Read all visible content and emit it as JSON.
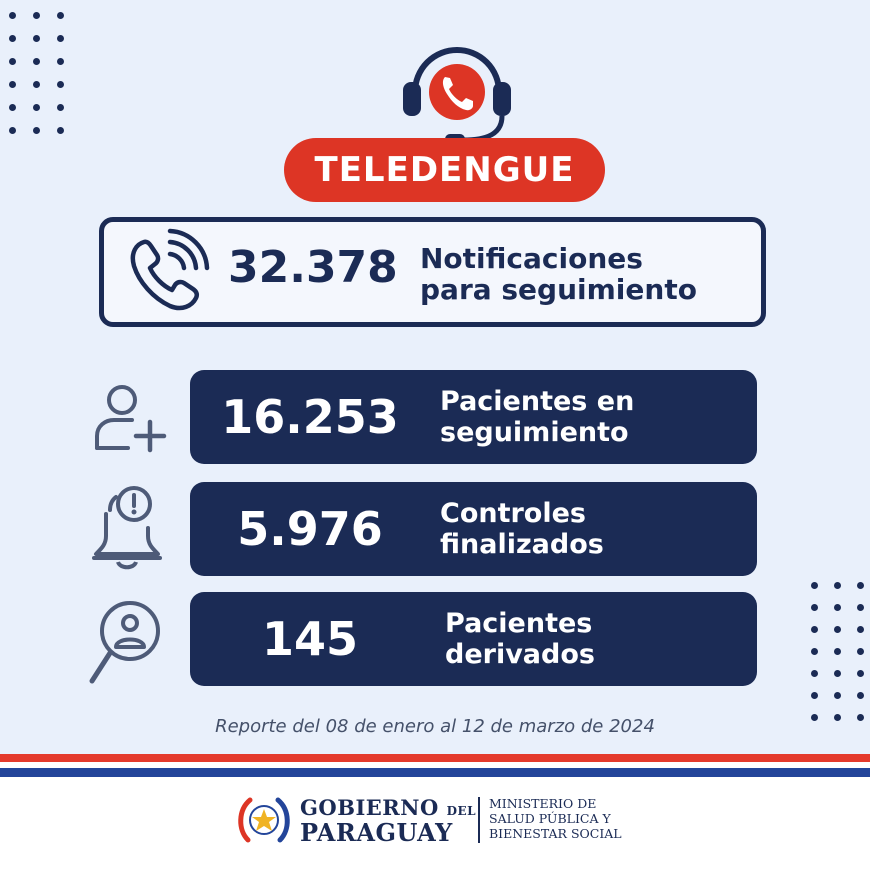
{
  "header": {
    "title": "TELEDENGUE"
  },
  "notifications": {
    "value": "32.378",
    "label_line1": "Notificaciones",
    "label_line2": "para seguimiento",
    "icon": "phone-ringing-icon"
  },
  "stats": [
    {
      "value": "16.253",
      "label_line1": "Pacientes en",
      "label_line2": "seguimiento",
      "icon": "add-user-icon"
    },
    {
      "value": "5.976",
      "label_line1": "Controles",
      "label_line2": "finalizados",
      "icon": "bell-alert-icon"
    },
    {
      "value": "145",
      "label_line1": "Pacientes",
      "label_line2": "derivados",
      "icon": "user-search-icon"
    }
  ],
  "report": "Reporte del 08 de enero al 12 de marzo de 2024",
  "footer": {
    "gov_line1": "GOBIERNO",
    "gov_del": "DEL",
    "gov_line2": "PARAGUAY",
    "ministry_line1": "MINISTERIO DE",
    "ministry_line2": "SALUD PÚBLICA Y",
    "ministry_line3": "BIENESTAR SOCIAL"
  },
  "colors": {
    "navy": "#1b2b55",
    "red": "#dd3525",
    "background": "#e9f0fb",
    "flag_blue": "#23459a"
  }
}
